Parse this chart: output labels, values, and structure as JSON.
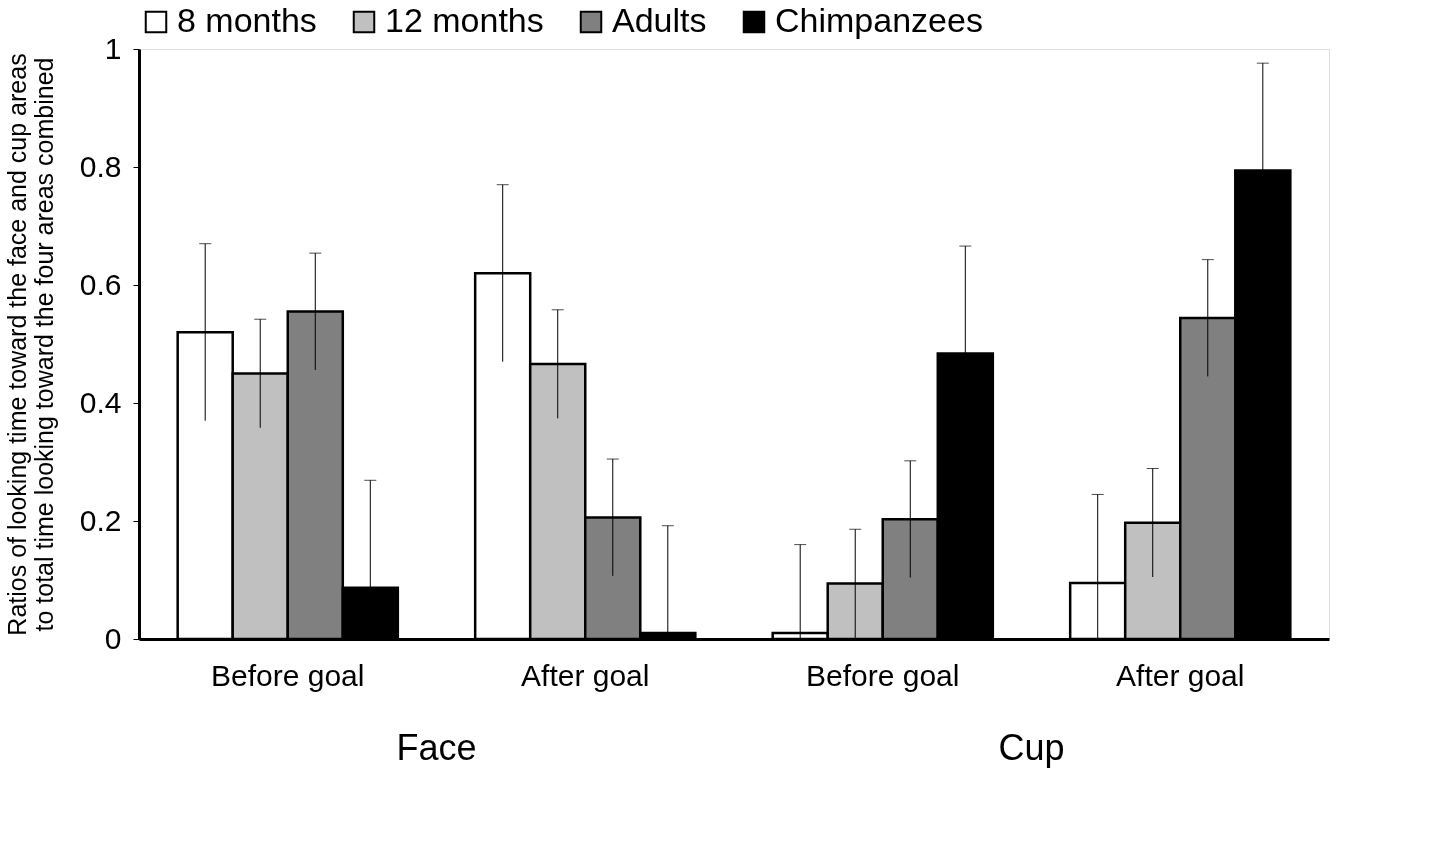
{
  "chart_data": {
    "type": "bar",
    "ylabel": "Ratios of looking time toward the face and cup areas\nto total time looking toward the four areas combined",
    "categories": [
      "Before goal",
      "After goal",
      "Before goal",
      "After goal"
    ],
    "series": [
      {
        "name": "8 months",
        "color": "#ffffff",
        "values": [
          0.52,
          0.62,
          0.01,
          0.095
        ],
        "errors": [
          0.15,
          0.15,
          [
            0,
            0.16
          ],
          [
            0,
            0.245
          ]
        ]
      },
      {
        "name": "12 months",
        "color": "#c0c0c0",
        "values": [
          0.45,
          0.466,
          0.094,
          0.197
        ],
        "errors": [
          0.092,
          0.092,
          [
            0.002,
            0.186
          ],
          0.092
        ]
      },
      {
        "name": "Adults",
        "color": "#808080",
        "values": [
          0.555,
          0.206,
          0.203,
          0.544
        ],
        "errors": [
          0.099,
          0.099,
          0.099,
          0.099
        ]
      },
      {
        "name": "Chimpanzees",
        "color": "#000000",
        "values": [
          0.087,
          0.01,
          0.484,
          0.794
        ],
        "errors": [
          [
            0,
            0.269
          ],
          [
            0,
            0.192
          ],
          0.182,
          0.182
        ]
      }
    ],
    "ylim": [
      0,
      1
    ],
    "yticks": [
      0,
      0.2,
      0.4,
      0.6,
      0.8,
      1
    ],
    "grid": false,
    "legend": "top",
    "annotations": [
      "Face",
      "Cup"
    ]
  }
}
